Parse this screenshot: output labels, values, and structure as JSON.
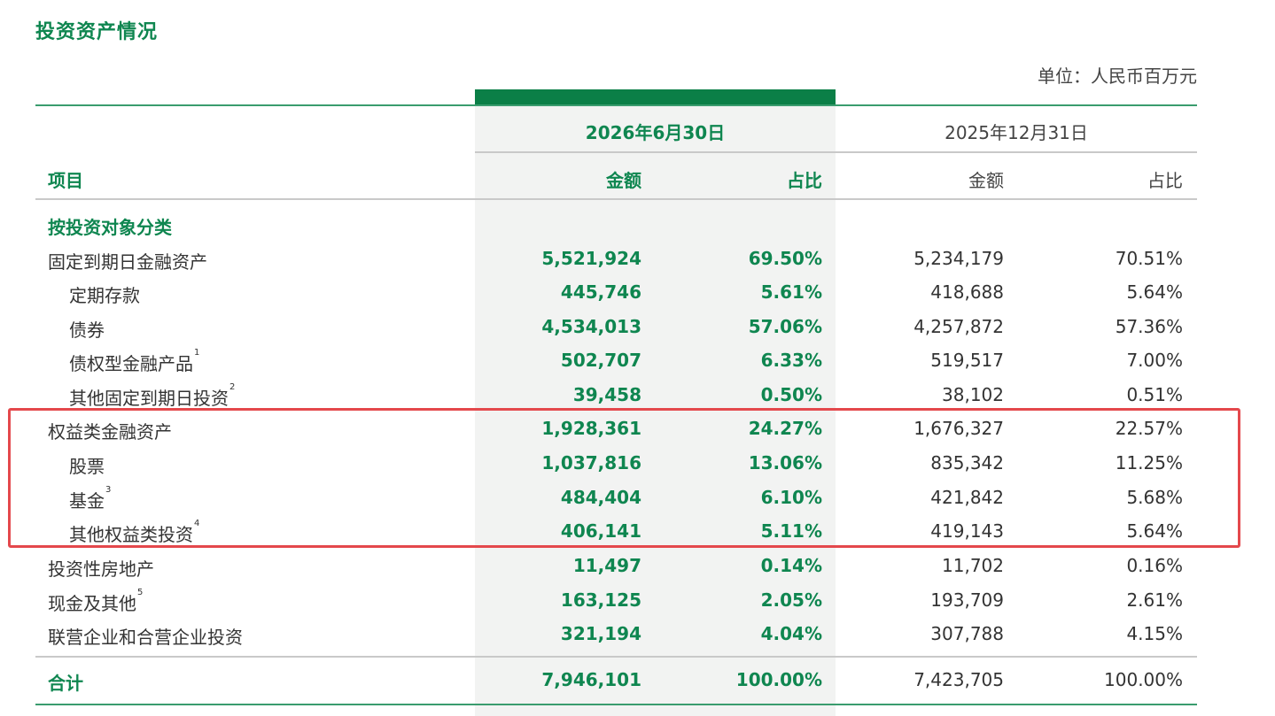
{
  "title": "投资资产情况",
  "unit": "单位：人民币百万元",
  "headers": {
    "date_current": "2026年6月30日",
    "date_previous": "2025年12月31日",
    "item": "项目",
    "amount": "金额",
    "ratio": "占比"
  },
  "colors": {
    "accent": "#0f8650",
    "highlight_border": "#e4484c"
  },
  "rows": [
    {
      "label": "按投资对象分类",
      "sup": "",
      "type": "section",
      "a26": "",
      "p26": "",
      "a25": "",
      "p25": ""
    },
    {
      "label": "固定到期日金融资产",
      "sup": "",
      "type": "main",
      "a26": "5,521,924",
      "p26": "69.50%",
      "a25": "5,234,179",
      "p25": "70.51%"
    },
    {
      "label": "定期存款",
      "sup": "",
      "type": "sub",
      "a26": "445,746",
      "p26": "5.61%",
      "a25": "418,688",
      "p25": "5.64%"
    },
    {
      "label": "债券",
      "sup": "",
      "type": "sub",
      "a26": "4,534,013",
      "p26": "57.06%",
      "a25": "4,257,872",
      "p25": "57.36%"
    },
    {
      "label": "债权型金融产品",
      "sup": "1",
      "type": "sub",
      "a26": "502,707",
      "p26": "6.33%",
      "a25": "519,517",
      "p25": "7.00%"
    },
    {
      "label": "其他固定到期日投资",
      "sup": "2",
      "type": "sub",
      "a26": "39,458",
      "p26": "0.50%",
      "a25": "38,102",
      "p25": "0.51%"
    },
    {
      "label": "权益类金融资产",
      "sup": "",
      "type": "main",
      "a26": "1,928,361",
      "p26": "24.27%",
      "a25": "1,676,327",
      "p25": "22.57%"
    },
    {
      "label": "股票",
      "sup": "",
      "type": "sub",
      "a26": "1,037,816",
      "p26": "13.06%",
      "a25": "835,342",
      "p25": "11.25%"
    },
    {
      "label": "基金",
      "sup": "3",
      "type": "sub",
      "a26": "484,404",
      "p26": "6.10%",
      "a25": "421,842",
      "p25": "5.68%"
    },
    {
      "label": "其他权益类投资",
      "sup": "4",
      "type": "sub",
      "a26": "406,141",
      "p26": "5.11%",
      "a25": "419,143",
      "p25": "5.64%"
    },
    {
      "label": "投资性房地产",
      "sup": "",
      "type": "main",
      "a26": "11,497",
      "p26": "0.14%",
      "a25": "11,702",
      "p25": "0.16%"
    },
    {
      "label": "现金及其他",
      "sup": "5",
      "type": "main",
      "a26": "163,125",
      "p26": "2.05%",
      "a25": "193,709",
      "p25": "2.61%"
    },
    {
      "label": "联营企业和合营企业投资",
      "sup": "",
      "type": "main",
      "a26": "321,194",
      "p26": "4.04%",
      "a25": "307,788",
      "p25": "4.15%"
    },
    {
      "label": "合计",
      "sup": "",
      "type": "total",
      "a26": "7,946,101",
      "p26": "100.00%",
      "a25": "7,423,705",
      "p25": "100.00%"
    }
  ]
}
